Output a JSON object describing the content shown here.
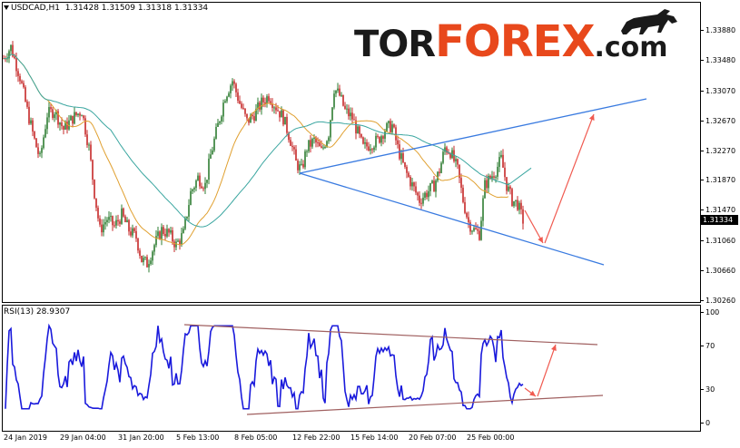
{
  "chart_header": {
    "symbol": "USDCAD,H1",
    "ohlc": "1.31428 1.31509 1.31318 1.31334"
  },
  "logo": {
    "part1": "TOR",
    "part2": "FOREX",
    "part3": ".com"
  },
  "current_price": "1.31334",
  "price_scale": [
    "1.33880",
    "1.33480",
    "1.33070",
    "1.32670",
    "1.32270",
    "1.31870",
    "1.31470",
    "1.31060",
    "1.30660",
    "1.30260"
  ],
  "rsi": {
    "label": "RSI(13) 28.9307",
    "scale": [
      "100",
      "70",
      "30",
      "0"
    ]
  },
  "time_axis": [
    "24 Jan 2019",
    "29 Jan 04:00",
    "31 Jan 20:00",
    "5 Feb 13:00",
    "8 Feb 05:00",
    "12 Feb 22:00",
    "15 Feb 14:00",
    "20 Feb 07:00",
    "25 Feb 00:00"
  ],
  "colors": {
    "bull_candle": "#2e7d32",
    "bear_candle": "#c62828",
    "ma_fast": "#e0a030",
    "ma_slow": "#3aa6a0",
    "trend_line": "#3a7be0",
    "forecast_arrow": "#f05a50",
    "rsi_line": "#1a1adc",
    "rsi_channel": "#a06060",
    "logo_accent": "#e8481c"
  },
  "chart_data": {
    "type": "line",
    "symbol": "USDCAD",
    "timeframe": "H1",
    "ylim": [
      1.3026,
      1.3388
    ],
    "x": [
      "24 Jan 2019",
      "29 Jan 04:00",
      "31 Jan 20:00",
      "5 Feb 13:00",
      "8 Feb 05:00",
      "12 Feb 22:00",
      "15 Feb 14:00",
      "20 Feb 07:00",
      "25 Feb 00:00"
    ],
    "series": [
      {
        "values": [
          1.3355,
          1.327,
          1.311,
          1.3135,
          1.3295,
          1.32,
          1.326,
          1.317,
          1.319
        ]
      }
    ]
  }
}
